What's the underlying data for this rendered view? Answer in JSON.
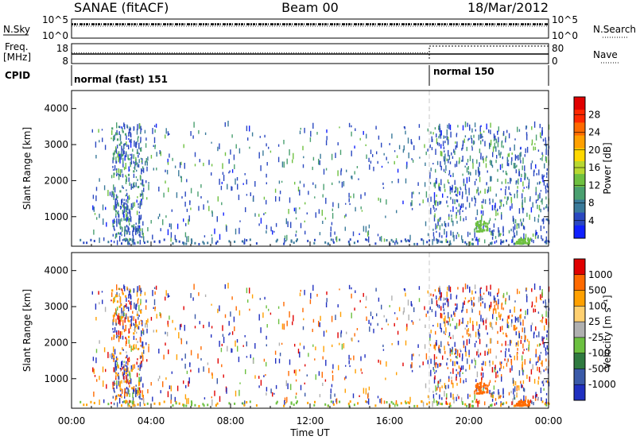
{
  "header": {
    "station": "SANAE (fitACF)",
    "beam": "Beam 00",
    "date": "18/Mar/2012"
  },
  "status_panels": {
    "nsky_label": "N.Sky",
    "nsky_ticks": [
      "10^5",
      "10^0"
    ],
    "nsearch_label": "N.Search",
    "nsearch_ticks": [
      "10^5",
      "10^0"
    ],
    "freq_label": "Freq.",
    "freq_unit": "[MHz]",
    "freq_ticks": [
      "18",
      "8"
    ],
    "nave_label": "Nave",
    "nave_ticks": [
      "80",
      "0"
    ],
    "cpid_label": "CPID",
    "cpid_segments": [
      {
        "name": "normal (fast) 151",
        "start_hour": 0
      },
      {
        "name": "normal 150",
        "start_hour": 18
      }
    ]
  },
  "chart_data": [
    {
      "type": "heatmap",
      "panel": "power",
      "ylabel": "Slant Range [km]",
      "xlim": [
        0,
        24
      ],
      "ylim": [
        180,
        4500
      ],
      "yticks": [
        "4000",
        "3000",
        "2000",
        "1000"
      ],
      "colorbar_label": "Power [dB]",
      "colorbar_ticks": [
        "28",
        "24",
        "20",
        "16",
        "12",
        "8",
        "4"
      ],
      "colors": [
        "#1020ff",
        "#2a48c0",
        "#3a7a9a",
        "#4aa070",
        "#6ec040",
        "#b8d830",
        "#ffd800",
        "#ffa000",
        "#ff6a00",
        "#ff2800",
        "#e00000"
      ],
      "features": [
        {
          "x": [
            2.0,
            3.6
          ],
          "y": [
            200,
            3500
          ],
          "level": 0.3
        },
        {
          "x": [
            20.3,
            20.9
          ],
          "y": [
            550,
            850
          ],
          "level": 0.45
        },
        {
          "x": [
            22.3,
            23.0
          ],
          "y": [
            200,
            350
          ],
          "level": 0.35
        }
      ]
    },
    {
      "type": "heatmap",
      "panel": "velocity",
      "ylabel": "Slant Range [km]",
      "xlabel": "Time UT",
      "xlim": [
        0,
        24
      ],
      "ylim": [
        180,
        4500
      ],
      "yticks": [
        "4000",
        "3000",
        "2000",
        "1000"
      ],
      "xticks": [
        "00:00",
        "04:00",
        "08:00",
        "12:00",
        "16:00",
        "20:00",
        "00:00"
      ],
      "colorbar_label": "Velocity [m s⁻¹]",
      "colorbar_ticks": [
        "1000",
        "500",
        "100",
        "25",
        "-25",
        "-100",
        "-500",
        "-1000"
      ],
      "colors": [
        "#2030c0",
        "#3a5aa8",
        "#2f7a40",
        "#6cc040",
        "#b0b0b0",
        "#ffd070",
        "#ffa000",
        "#ff6a00",
        "#e00000"
      ],
      "features": [
        {
          "x": [
            2.0,
            3.6
          ],
          "y": [
            200,
            3500
          ],
          "level": 0.6
        },
        {
          "x": [
            20.3,
            20.9
          ],
          "y": [
            550,
            850
          ],
          "level": 0.75
        },
        {
          "x": [
            22.3,
            23.0
          ],
          "y": [
            200,
            350
          ],
          "level": 0.8
        }
      ]
    }
  ]
}
